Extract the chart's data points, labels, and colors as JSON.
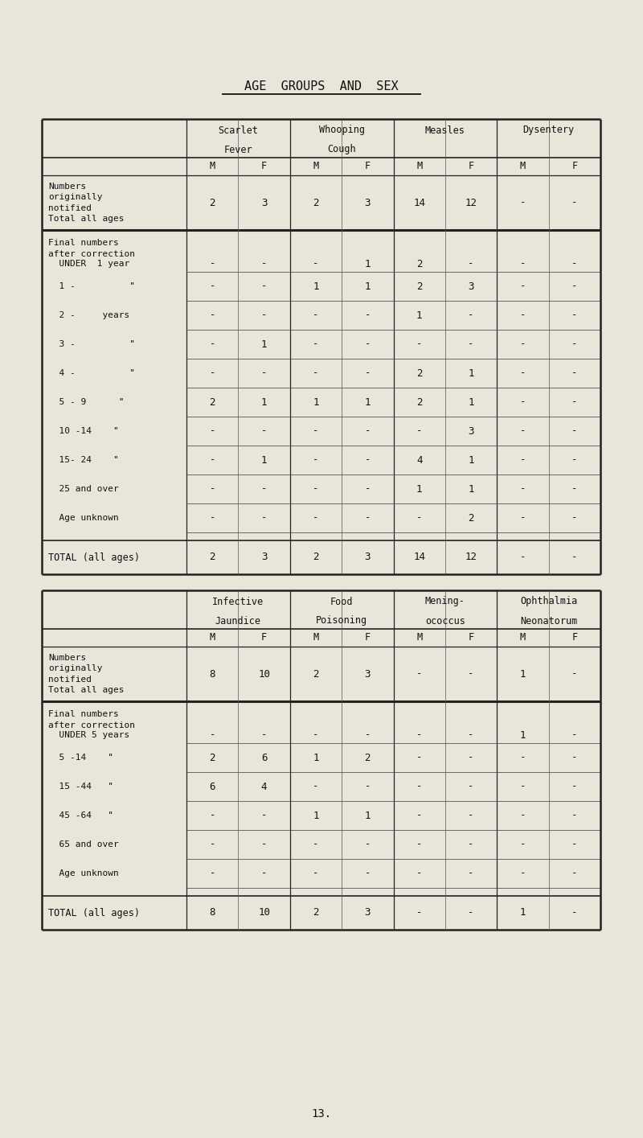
{
  "title": "AGE  GROUPS  AND  SEX",
  "bg_color": "#e9e5d9",
  "page_number": "13.",
  "table1": {
    "col_headers_line1": [
      "Scarlet",
      "Whooping",
      "Measles",
      "Dysentery"
    ],
    "col_headers_line2": [
      "Fever",
      "Cough",
      "",
      ""
    ],
    "sub_headers": [
      "M",
      "F",
      "M",
      "F",
      "M",
      "F",
      "M",
      "F"
    ],
    "row_label_notified": "Numbers\noriginally\nnotified\nTotal all ages",
    "notified_values": [
      "2",
      "3",
      "2",
      "3",
      "14",
      "12",
      "-",
      "-"
    ],
    "section_label_line1": "Final numbers",
    "section_label_line2": "after correction",
    "age_rows": [
      {
        "label": "  UNDER  1 year",
        "values": [
          "-",
          "-",
          "-",
          "1",
          "2",
          "-",
          "-",
          "-"
        ]
      },
      {
        "label": "  1 -          \"",
        "values": [
          "-",
          "-",
          "1",
          "1",
          "2",
          "3",
          "-",
          "-"
        ]
      },
      {
        "label": "  2 -     years",
        "values": [
          "-",
          "-",
          "-",
          "-",
          "1",
          "-",
          "-",
          "-"
        ]
      },
      {
        "label": "  3 -          \"",
        "values": [
          "-",
          "1",
          "-",
          "-",
          "-",
          "-",
          "-",
          "-"
        ]
      },
      {
        "label": "  4 -          \"",
        "values": [
          "-",
          "-",
          "-",
          "-",
          "2",
          "1",
          "-",
          "-"
        ]
      },
      {
        "label": "  5 - 9      \"",
        "values": [
          "2",
          "1",
          "1",
          "1",
          "2",
          "1",
          "-",
          "-"
        ]
      },
      {
        "label": "  10 -14    \"",
        "values": [
          "-",
          "-",
          "-",
          "-",
          "-",
          "3",
          "-",
          "-"
        ]
      },
      {
        "label": "  15- 24    \"",
        "values": [
          "-",
          "1",
          "-",
          "-",
          "4",
          "1",
          "-",
          "-"
        ]
      },
      {
        "label": "  25 and over",
        "values": [
          "-",
          "-",
          "-",
          "-",
          "1",
          "1",
          "-",
          "-"
        ]
      },
      {
        "label": "  Age unknown",
        "values": [
          "-",
          "-",
          "-",
          "-",
          "-",
          "2",
          "-",
          "-"
        ]
      }
    ],
    "total_row": {
      "label": "TOTAL (all ages)",
      "values": [
        "2",
        "3",
        "2",
        "3",
        "14",
        "12",
        "-",
        "-"
      ]
    }
  },
  "table2": {
    "col_headers_line1": [
      "Infective",
      "Food",
      "Mening-",
      "Ophthalmia"
    ],
    "col_headers_line2": [
      "Jaundice",
      "Poisoning",
      "ococcus",
      "Neonatorum"
    ],
    "sub_headers": [
      "M",
      "F",
      "M",
      "F",
      "M",
      "F",
      "M",
      "F"
    ],
    "row_label_notified": "Numbers\noriginally\nnotified\nTotal all ages",
    "notified_values": [
      "8",
      "10",
      "2",
      "3",
      "-",
      "-",
      "1",
      "-"
    ],
    "section_label_line1": "Final numbers",
    "section_label_line2": "after correction",
    "age_rows": [
      {
        "label": "  UNDER 5 years",
        "values": [
          "-",
          "-",
          "-",
          "-",
          "-",
          "-",
          "1",
          "-"
        ]
      },
      {
        "label": "  5 -14    \"",
        "values": [
          "2",
          "6",
          "1",
          "2",
          "-",
          "-",
          "-",
          "-"
        ]
      },
      {
        "label": "  15 -44   \"",
        "values": [
          "6",
          "4",
          "-",
          "-",
          "-",
          "-",
          "-",
          "-"
        ]
      },
      {
        "label": "  45 -64   \"",
        "values": [
          "-",
          "-",
          "1",
          "1",
          "-",
          "-",
          "-",
          "-"
        ]
      },
      {
        "label": "  65 and over",
        "values": [
          "-",
          "-",
          "-",
          "-",
          "-",
          "-",
          "-",
          "-"
        ]
      },
      {
        "label": "  Age unknown",
        "values": [
          "-",
          "-",
          "-",
          "-",
          "-",
          "-",
          "-",
          "-"
        ]
      }
    ],
    "total_row": {
      "label": "TOTAL (all ages)",
      "values": [
        "8",
        "10",
        "2",
        "3",
        "-",
        "-",
        "1",
        "-"
      ]
    }
  }
}
